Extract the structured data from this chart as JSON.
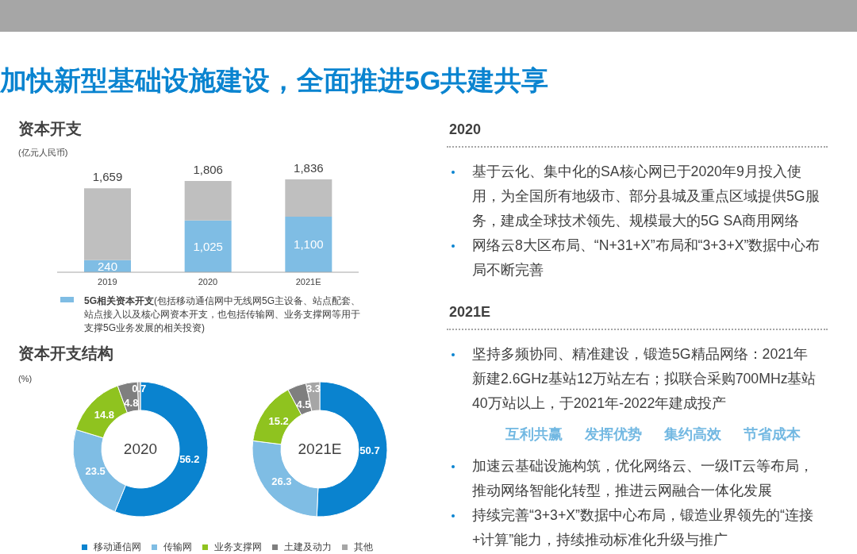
{
  "chart_data": [
    {
      "type": "other",
      "title": "加快新型基础设施建设，全面推进5G共建共享"
    },
    {
      "type": "bar",
      "title": "资本开支",
      "subtitle": "(亿元人民币)",
      "categories": [
        "2019",
        "2020",
        "2021E"
      ],
      "stacked": true,
      "series": [
        {
          "name": "5G相关资本开支(包括移动通信网中无线网5G主设备、站点配套、站点接入以及核心网资本开支，也包括传输网、业务支撑网等用于支撑5G业务发展的相关投资)",
          "color": "#7fbde4",
          "values": [
            240,
            1025,
            1100
          ],
          "value_labels": [
            "240",
            "1,025",
            "1,100"
          ]
        },
        {
          "color": "#bfbfbf",
          "values": [
            1419,
            781,
            736
          ]
        }
      ],
      "totals": [
        "1,659",
        "1,806",
        "1,836"
      ],
      "legend": "bottom"
    },
    {
      "type": "donut",
      "title": "资本开支结构",
      "subtitle": "(%)",
      "categories": [
        "移动通信网",
        "传输网",
        "业务支撑网",
        "土建及动力",
        "其他"
      ],
      "colors": [
        "#0a83cf",
        "#7fbde4",
        "#8fc31f",
        "#7f7f7f",
        "#a6a6a6"
      ],
      "series": [
        {
          "name": "2020",
          "values": [
            56.2,
            23.5,
            14.8,
            4.8,
            0.7
          ]
        },
        {
          "name": "2021E",
          "values": [
            50.7,
            26.3,
            15.2,
            4.5,
            3.3
          ]
        }
      ],
      "data_labels": true,
      "legend": "bottom"
    },
    {
      "type": "other",
      "title": "2020",
      "annotations": [
        "基于云化、集中化的SA核心网已于2020年9月投入使用，为全国所有地级市、部分县城及重点区域提供5G服务，建成全球技术领先、规模最大的5G SA商用网络",
        "网络云8大区布局、“N+31+X”布局和“3+3+X”数据中心布局不断完善"
      ]
    },
    {
      "type": "other",
      "title": "2021E",
      "annotations": [
        "坚持多频协同、精准建设，锻造5G精品网络：2021年新建2.6GHz基站12万站左右；拟联合采购700MHz基站40万站以上，于2021年-2022年建成投产",
        "互利共赢",
        "发挥优势",
        "集约高效",
        "节省成本",
        "加速云基础设施构筑，优化网络云、一级IT云等布局，推动网络智能化转型，推进云网融合一体化发展",
        "持续完善“3+3+X”数据中心布局，锻造业界领先的“连接+计算”能力，持续推动标准化升级与推广"
      ]
    }
  ]
}
